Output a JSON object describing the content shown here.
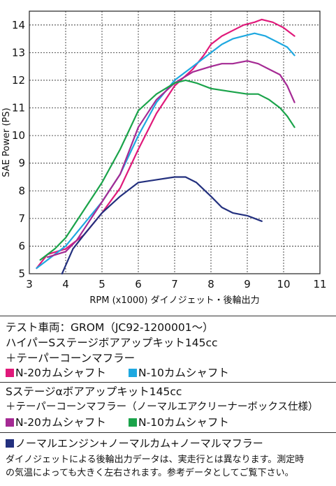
{
  "chart_data": {
    "type": "line",
    "title": "",
    "xlabel": "RPM (x1000) ダイノジェット・後輪出力",
    "ylabel": "SAE Power (PS)",
    "xlim": [
      3,
      11
    ],
    "ylim": [
      5,
      14.5
    ],
    "xticks": [
      "3",
      "4",
      "5",
      "6",
      "7",
      "8",
      "9",
      "10",
      "11"
    ],
    "yticks": [
      "5",
      "6",
      "7",
      "8",
      "9",
      "10",
      "11",
      "12",
      "13",
      "14"
    ],
    "grid": true,
    "series": [
      {
        "name": "N-20カムシャフト",
        "color": "#e0197a",
        "x": [
          3.2,
          3.5,
          4.0,
          4.5,
          5.0,
          5.5,
          6.0,
          6.5,
          7.0,
          7.5,
          7.8,
          8.0,
          8.3,
          8.6,
          8.9,
          9.2,
          9.4,
          9.7,
          10.0,
          10.3
        ],
        "y": [
          5.2,
          5.7,
          5.9,
          6.4,
          7.2,
          8.1,
          9.5,
          10.8,
          11.8,
          12.4,
          12.9,
          13.3,
          13.6,
          13.8,
          14.0,
          14.1,
          14.2,
          14.1,
          13.9,
          13.6
        ]
      },
      {
        "name": "N-10カムシャフト",
        "color": "#1ea8e0",
        "x": [
          3.2,
          3.5,
          4.0,
          4.5,
          5.0,
          5.5,
          6.0,
          6.5,
          7.0,
          7.5,
          8.0,
          8.3,
          8.6,
          8.9,
          9.2,
          9.5,
          9.8,
          10.1,
          10.3
        ],
        "y": [
          5.2,
          5.5,
          6.0,
          6.8,
          7.6,
          8.6,
          10.0,
          11.2,
          12.0,
          12.5,
          13.0,
          13.3,
          13.5,
          13.6,
          13.7,
          13.6,
          13.4,
          13.2,
          12.9
        ]
      },
      {
        "name": "N-20カムシャフト",
        "color": "#a52a94",
        "x": [
          3.5,
          4.0,
          4.3,
          4.6,
          5.0,
          5.5,
          6.0,
          6.5,
          7.0,
          7.5,
          8.0,
          8.3,
          8.6,
          9.0,
          9.3,
          9.6,
          9.9,
          10.1,
          10.3
        ],
        "y": [
          5.6,
          5.8,
          6.2,
          6.8,
          7.6,
          8.6,
          10.3,
          11.3,
          11.9,
          12.3,
          12.5,
          12.6,
          12.6,
          12.7,
          12.6,
          12.4,
          12.2,
          11.8,
          11.2
        ]
      },
      {
        "name": "N-10カムシャフト",
        "color": "#1aa34a",
        "x": [
          3.3,
          3.7,
          4.0,
          4.5,
          5.0,
          5.5,
          6.0,
          6.5,
          7.0,
          7.3,
          7.6,
          8.0,
          8.5,
          9.0,
          9.3,
          9.6,
          9.9,
          10.1,
          10.3
        ],
        "y": [
          5.5,
          5.9,
          6.3,
          7.3,
          8.3,
          9.5,
          10.9,
          11.5,
          11.9,
          12.0,
          11.9,
          11.7,
          11.6,
          11.5,
          11.5,
          11.3,
          11.0,
          10.7,
          10.3
        ]
      },
      {
        "name": "ノーマルエンジン+ノーマルカム+ノーマルマフラー",
        "color": "#23307e",
        "x": [
          3.9,
          4.2,
          4.5,
          5.0,
          5.5,
          6.0,
          6.5,
          7.0,
          7.3,
          7.6,
          8.0,
          8.3,
          8.6,
          9.0,
          9.2,
          9.4
        ],
        "y": [
          5.0,
          5.9,
          6.4,
          7.2,
          7.8,
          8.3,
          8.4,
          8.5,
          8.5,
          8.3,
          7.8,
          7.4,
          7.2,
          7.1,
          7.0,
          6.9
        ]
      }
    ]
  },
  "info": {
    "line1": "テスト車両：GROM（JC92-1200001〜）",
    "line2": "ハイパーSステージボアアップキット145cc",
    "line3": "＋テーパーコーンマフラー",
    "legend_a1": "N-20カムシャフト",
    "legend_a2": "N-10カムシャフト",
    "line4": "Sステージαボアアップキット145cc",
    "line5": "＋テーパーコーンマフラー（ノーマルエアクリーナーボックス仕様）",
    "legend_b1": "N-20カムシャフト",
    "legend_b2": "N-10カムシャフト",
    "legend_c": "ノーマルエンジン+ノーマルカム+ノーマルマフラー",
    "note1": "ダイノジェットによる後輪出力データは、実走行とは異なります。測定時",
    "note2": "の気温によっても大きく左右されます。参考データとしてご覧下さい。"
  },
  "colors": {
    "magenta": "#e0197a",
    "cyan": "#1ea8e0",
    "purple": "#a52a94",
    "green": "#1aa34a",
    "navy": "#23307e"
  }
}
